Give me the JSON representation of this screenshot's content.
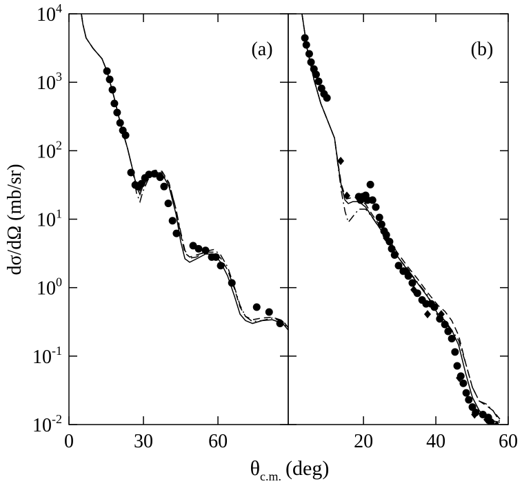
{
  "x_label": "θ",
  "x_label_sub": "c.m.",
  "x_label_unit": "(deg)",
  "y_label": "dσ/dΩ (mb/sr)",
  "chart_data": [
    {
      "type": "line",
      "annotation": "(a)",
      "yscale": "log",
      "xlim": [
        0,
        88.3
      ],
      "ylim": [
        0.01,
        10000
      ],
      "xticks": [
        0,
        30,
        60
      ],
      "yticks": [
        {
          "value": 10000,
          "label": "10",
          "exponent": "4"
        },
        {
          "value": 1000,
          "label": "10",
          "exponent": "3"
        },
        {
          "value": 100,
          "label": "10",
          "exponent": "2"
        },
        {
          "value": 10,
          "label": "10",
          "exponent": "1"
        },
        {
          "value": 1,
          "label": "10",
          "exponent": "0"
        },
        {
          "value": 0.1,
          "label": "10",
          "exponent": "-1"
        },
        {
          "value": 0.01,
          "label": "10",
          "exponent": "-2"
        }
      ],
      "series": [
        {
          "style": "solid",
          "color": "#000000",
          "x": [
            5.0,
            5.6,
            6.9,
            9.7,
            13.3,
            15.3,
            18.1,
            20.8,
            23.6,
            25.6,
            27.2,
            28.6,
            29.7,
            31.9,
            34.7,
            37.5,
            40.3,
            43.1,
            45.0,
            46.7,
            48.6,
            51.4,
            55.0,
            58.3,
            61.1,
            63.9,
            66.7,
            68.9,
            71.1,
            73.9,
            77.8,
            81.9,
            86.1,
            88.3
          ],
          "values": [
            10000,
            7060,
            4440,
            3130,
            2210,
            1456,
            617,
            244,
            108,
            54,
            30,
            22.9,
            30,
            40,
            48,
            46,
            30,
            11.9,
            4.7,
            2.64,
            2.35,
            2.64,
            3.1,
            3.1,
            2.35,
            1.48,
            0.74,
            0.41,
            0.33,
            0.3,
            0.33,
            0.34,
            0.3,
            0.24
          ]
        },
        {
          "style": "dashed",
          "color": "#000000",
          "x": [
            5.0,
            5.6,
            6.9,
            9.7,
            13.3,
            15.3,
            18.1,
            20.8,
            23.6,
            25.6,
            27.2,
            28.6,
            29.7,
            31.9,
            34.7,
            37.5,
            40.3,
            43.1,
            45.0,
            46.7,
            48.6,
            51.4,
            55.0,
            58.3,
            61.1,
            63.9,
            66.7,
            68.9,
            71.1,
            73.9,
            77.8,
            81.9,
            86.1,
            88.3
          ],
          "values": [
            10000,
            7060,
            4440,
            3130,
            2210,
            1456,
            617,
            244,
            108,
            54,
            31,
            26,
            33,
            44,
            52,
            50,
            34,
            14,
            6,
            3.2,
            2.8,
            3.0,
            3.3,
            3.3,
            2.7,
            1.8,
            0.95,
            0.52,
            0.38,
            0.34,
            0.36,
            0.37,
            0.33,
            0.26
          ]
        },
        {
          "style": "dotdash",
          "color": "#000000",
          "x": [
            5.0,
            5.6,
            6.9,
            9.7,
            13.3,
            15.3,
            18.1,
            20.8,
            23.6,
            25.6,
            27.2,
            28.6,
            29.7,
            31.9,
            34.7,
            37.5,
            40.3,
            43.1,
            45.0,
            46.7,
            48.6,
            51.4,
            55.0,
            58.3,
            61.1,
            63.9,
            66.7,
            68.9,
            71.1,
            73.9,
            77.8,
            81.9,
            86.1,
            88.3
          ],
          "values": [
            10000,
            7060,
            4440,
            3130,
            2210,
            1456,
            617,
            244,
            108,
            54,
            24,
            18,
            25,
            38,
            47,
            48,
            33,
            14,
            6.5,
            3.5,
            2.7,
            2.8,
            3.4,
            3.6,
            3.0,
            2.0,
            1.0,
            0.55,
            0.38,
            0.32,
            0.33,
            0.36,
            0.32,
            0.25
          ]
        },
        {
          "style": "circle",
          "color": "#000000",
          "x": [
            15.3,
            16.4,
            17.5,
            18.3,
            19.4,
            20.6,
            21.7,
            22.8,
            25.0,
            26.7,
            27.8,
            29.2,
            30.6,
            32.2,
            34.4,
            36.7,
            38.3,
            40.0,
            41.7,
            43.3,
            50.0,
            52.2,
            55.0,
            57.5,
            59.2,
            61.1,
            65.6,
            75.6,
            80.6,
            85.0
          ],
          "values": [
            1456,
            1100,
            778,
            490,
            361,
            255,
            198,
            168,
            48,
            31.6,
            30,
            33,
            40,
            45,
            46,
            41,
            30,
            17,
            9.5,
            6.2,
            4.1,
            3.7,
            3.5,
            2.8,
            2.8,
            2.1,
            1.17,
            0.52,
            0.44,
            0.3
          ]
        }
      ]
    },
    {
      "type": "line",
      "annotation": "(b)",
      "yscale": "log",
      "xlim": [
        -0.8,
        60
      ],
      "ylim": [
        0.01,
        10000
      ],
      "xticks": [
        20,
        40,
        60
      ],
      "series": [
        {
          "style": "solid",
          "color": "#000000",
          "x": [
            3.0,
            4.4,
            6.3,
            8.2,
            10.1,
            12.0,
            13.0,
            13.9,
            14.9,
            15.8,
            17.1,
            18.7,
            20.6,
            22.5,
            24.4,
            26.3,
            29.1,
            32.0,
            34.9,
            37.7,
            40.6,
            42.5,
            44.4,
            46.3,
            48.2,
            50.1,
            52.0,
            53.9,
            55.8,
            57.7
          ],
          "values": [
            10000,
            3130,
            1100,
            490,
            274,
            153,
            61,
            30,
            19,
            16.9,
            18.1,
            18.1,
            15,
            10.6,
            7.5,
            5.3,
            3.0,
            1.86,
            1.17,
            0.74,
            0.41,
            0.33,
            0.24,
            0.145,
            0.057,
            0.025,
            0.016,
            0.0127,
            0.0113,
            0.0108
          ]
        },
        {
          "style": "dashed",
          "color": "#000000",
          "x": [
            3.0,
            4.4,
            6.3,
            8.2,
            10.1,
            12.0,
            13.0,
            13.9,
            14.9,
            15.8,
            17.1,
            18.7,
            20.6,
            22.5,
            24.4,
            26.3,
            29.1,
            32.0,
            34.9,
            37.7,
            40.6,
            42.5,
            44.4,
            46.3,
            48.2,
            50.1,
            52.0,
            53.9,
            55.8,
            57.7
          ],
          "values": [
            10000,
            3130,
            1100,
            490,
            274,
            153,
            64,
            32,
            22,
            20,
            21,
            20,
            16.5,
            11.5,
            8.2,
            5.9,
            3.4,
            2.1,
            1.35,
            0.85,
            0.55,
            0.45,
            0.33,
            0.2,
            0.08,
            0.035,
            0.022,
            0.019,
            0.016,
            0.012
          ]
        },
        {
          "style": "dotdash",
          "color": "#000000",
          "x": [
            3.0,
            4.4,
            6.3,
            8.2,
            10.1,
            12.0,
            13.0,
            13.9,
            14.9,
            15.8,
            17.1,
            18.7,
            20.6,
            22.5,
            24.4,
            26.3,
            29.1,
            32.0,
            34.9,
            37.7,
            40.6,
            42.5,
            44.4,
            46.3,
            48.2,
            50.1,
            52.0,
            53.9,
            55.8,
            57.7
          ],
          "values": [
            10000,
            3130,
            1100,
            490,
            274,
            153,
            58,
            25,
            13,
            9,
            11,
            14,
            14,
            10.5,
            7.5,
            5.3,
            3.0,
            1.9,
            1.2,
            0.78,
            0.38,
            0.3,
            0.24,
            0.17,
            0.08,
            0.035,
            0.022,
            0.02,
            0.016,
            0.011
          ]
        },
        {
          "style": "circle",
          "color": "#000000",
          "x": [
            3.8,
            4.2,
            5.0,
            5.5,
            6.3,
            6.9,
            7.6,
            8.4,
            9.1,
            9.9,
            18.7,
            19.2,
            19.8,
            20.6,
            21.1,
            21.9,
            22.5,
            23.4,
            24.4,
            25.0,
            25.7,
            26.3,
            27.2,
            27.8,
            28.6,
            29.7,
            31.0,
            32.4,
            33.5,
            34.9,
            36.2,
            37.3,
            38.7,
            39.6,
            41.1,
            42.5,
            43.4,
            44.4,
            45.3,
            45.9,
            46.9,
            47.6,
            48.4,
            49.1,
            50.1,
            51.0,
            53.0,
            54.5,
            55.2
          ],
          "values": [
            4440,
            3520,
            2600,
            1970,
            1560,
            1300,
            1030,
            815,
            677,
            590,
            21.3,
            19,
            21.3,
            22.3,
            19,
            32,
            19,
            15,
            10.6,
            8.4,
            6.7,
            5.9,
            4.7,
            3.7,
            3.0,
            2.1,
            1.74,
            1.48,
            1.17,
            0.83,
            0.66,
            0.58,
            0.58,
            0.52,
            0.35,
            0.29,
            0.23,
            0.18,
            0.115,
            0.072,
            0.051,
            0.04,
            0.029,
            0.023,
            0.018,
            0.015,
            0.014,
            0.0127,
            0.0108
          ]
        },
        {
          "style": "diamond",
          "color": "#000000",
          "x": [
            13.7,
            15.4,
            26.3,
            32.0,
            33.9,
            37.7,
            41.5,
            46.5,
            50.7,
            54.1,
            56.8
          ],
          "values": [
            71,
            22,
            5.3,
            1.75,
            0.93,
            0.41,
            0.41,
            0.048,
            0.014,
            0.0118,
            0.0098
          ]
        }
      ]
    }
  ]
}
